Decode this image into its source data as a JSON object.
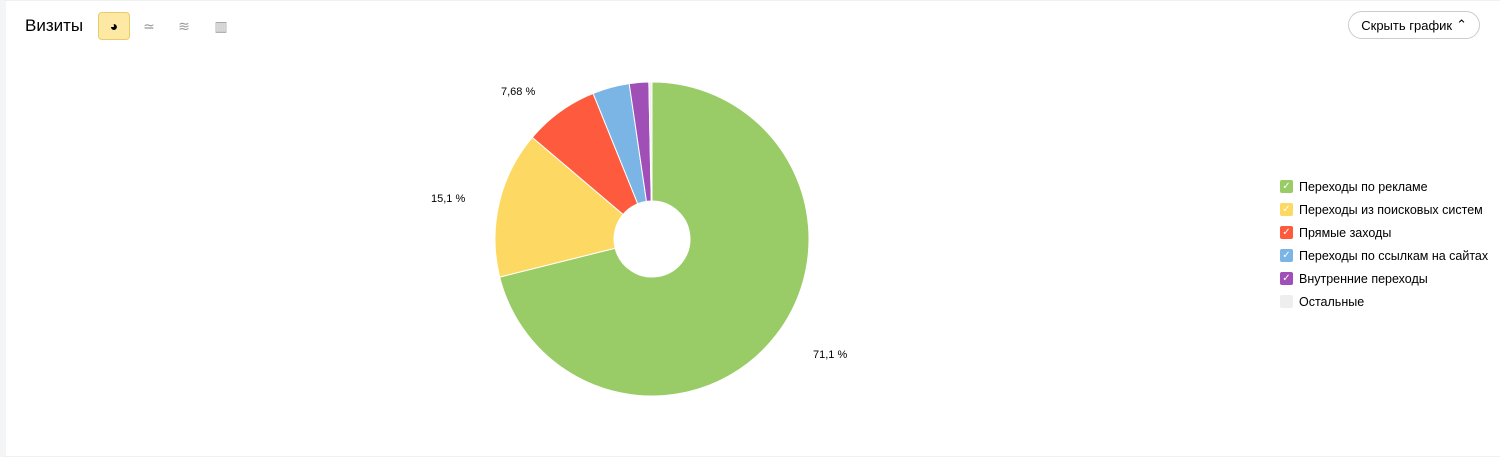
{
  "header": {
    "title": "Визиты",
    "hide_label": "Скрыть график"
  },
  "toolbar": [
    {
      "icon": "pie-chart-icon",
      "active": true
    },
    {
      "icon": "line-chart-icon"
    },
    {
      "icon": "area-chart-icon"
    },
    {
      "icon": "bar-chart-icon"
    }
  ],
  "chart_data": {
    "type": "pie",
    "donut": true,
    "categories": [
      "Переходы по рекламе",
      "Переходы из поисковых систем",
      "Прямые заходы",
      "Переходы по ссылкам на сайтах",
      "Внутренние переходы",
      "Остальные"
    ],
    "values": [
      71.1,
      15.1,
      7.68,
      3.8,
      2.0,
      0.32
    ],
    "data_labels": [
      "71,1 %",
      "15,1 %",
      "7,68 %",
      "",
      "",
      ""
    ],
    "colors": [
      "#99cc66",
      "#fdd963",
      "#fe5a3d",
      "#7ab5e6",
      "#9f4fb6",
      "#eeeeee"
    ],
    "legend": "right"
  }
}
